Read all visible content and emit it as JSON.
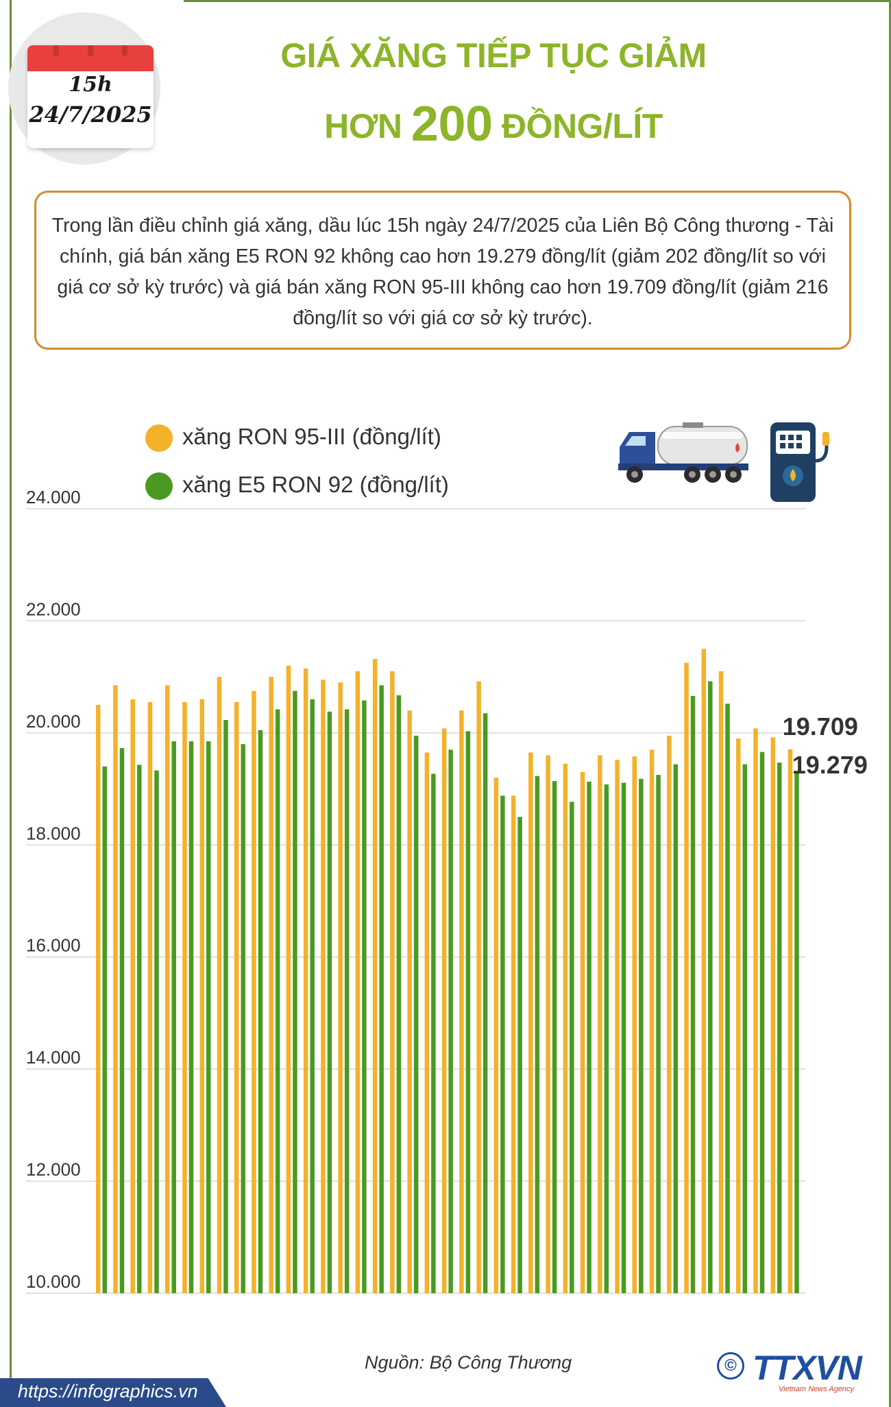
{
  "header": {
    "calendar_time": "15h",
    "calendar_date": "24/7/2025",
    "title_line1": "GIÁ XĂNG TIẾP TỤC GIẢM",
    "title_line2_prefix": "HƠN",
    "title_line2_number": "200",
    "title_line2_suffix": "ĐỒNG/LÍT",
    "title_color": "#8cb529"
  },
  "summary": {
    "text": "Trong lần điều chỉnh giá xăng, dầu lúc 15h ngày 24/7/2025 của Liên Bộ Công thương - Tài chính, giá bán xăng E5 RON 92 không cao hơn 19.279 đồng/lít (giảm 202 đồng/lít so với giá cơ sở kỳ trước) và giá bán xăng RON 95-III không cao hơn 19.709 đồng/lít (giảm 216 đồng/lít so với giá cơ sở kỳ trước)."
  },
  "legend": {
    "ron95_label": "xăng RON 95-III (đồng/lít)",
    "e5_label": "xăng E5 RON 92 (đồng/lít)"
  },
  "icons": {
    "truck": "fuel-tanker-truck-icon",
    "pump": "fuel-pump-icon"
  },
  "chart_data": {
    "type": "bar",
    "title": "GIÁ XĂNG TIẾP TỤC GIẢM HƠN 200 ĐỒNG/LÍT",
    "xlabel": "",
    "ylabel": "đồng/lít",
    "ylim": [
      10000,
      24000
    ],
    "yticks": [
      10000,
      12000,
      14000,
      16000,
      18000,
      20000,
      22000,
      24000
    ],
    "ytick_labels": [
      "10.000",
      "12.000",
      "14.000",
      "16.000",
      "18.000",
      "20.000",
      "22.000",
      "24.000"
    ],
    "grid": true,
    "series": [
      {
        "name": "xăng RON 95-III (đồng/lít)",
        "color": "#f4b12a",
        "values": [
          20500,
          20850,
          20600,
          20550,
          20850,
          20550,
          20600,
          21000,
          20550,
          20750,
          21000,
          21200,
          21150,
          20950,
          20900,
          21100,
          21320,
          21100,
          20400,
          19650,
          20080,
          20400,
          20920,
          19200,
          18880,
          19650,
          19600,
          19450,
          19300,
          19600,
          19520,
          19580,
          19700,
          19950,
          21250,
          21500,
          21100,
          19900,
          20080,
          19920,
          19709
        ]
      },
      {
        "name": "xăng E5 RON 92 (đồng/lít)",
        "color": "#4a9a22",
        "values": [
          19400,
          19730,
          19430,
          19330,
          19850,
          19850,
          19850,
          20230,
          19800,
          20050,
          20420,
          20750,
          20600,
          20380,
          20420,
          20580,
          20850,
          20670,
          19950,
          19270,
          19700,
          20030,
          20350,
          18880,
          18500,
          19230,
          19140,
          18770,
          19130,
          19080,
          19110,
          19180,
          19250,
          19440,
          20660,
          20920,
          20520,
          19440,
          19660,
          19470,
          19279
        ]
      }
    ],
    "annotations": [
      "19.709",
      "19.279"
    ]
  },
  "footer": {
    "source": "Nguồn: Bộ Công Thương",
    "url": "https://infographics.vn",
    "logo_symbol": "©",
    "logo_text": "TTXVN",
    "logo_subtext": "Vietnam News Agency"
  }
}
